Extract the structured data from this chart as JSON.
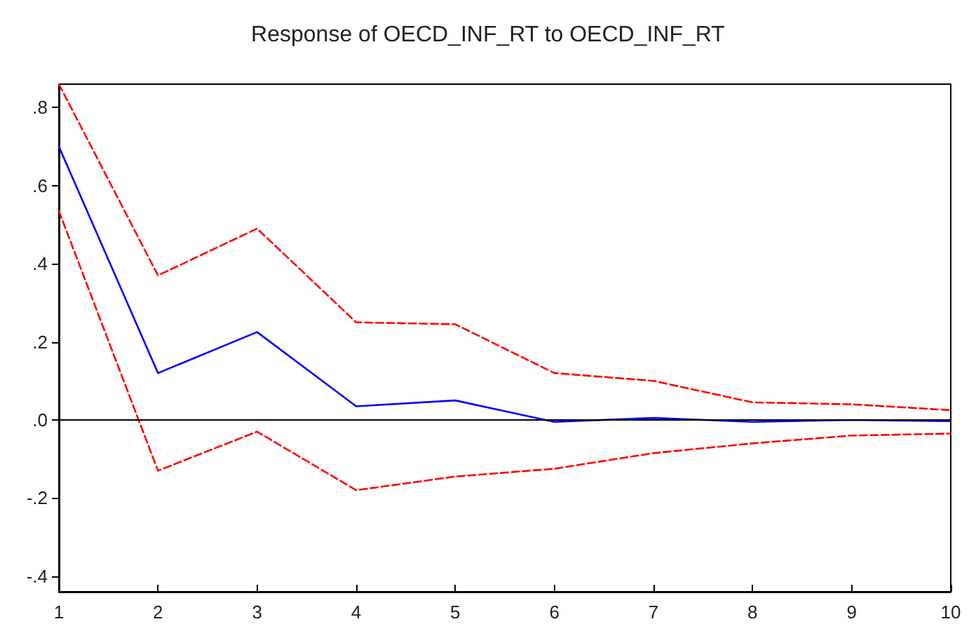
{
  "chart_data": {
    "type": "line",
    "title": "Response of OECD_INF_RT to OECD_INF_RT",
    "categories": [
      "1",
      "2",
      "3",
      "4",
      "5",
      "6",
      "7",
      "8",
      "9",
      "10"
    ],
    "series": [
      {
        "color": "#0000ff",
        "line_style": "solid",
        "values": [
          0.7,
          0.12,
          0.225,
          0.035,
          0.05,
          -0.005,
          0.005,
          -0.005,
          0.0,
          -0.003
        ]
      },
      {
        "color": "#ff0000",
        "line_style": "dashed",
        "values": [
          0.86,
          0.37,
          0.49,
          0.25,
          0.245,
          0.12,
          0.1,
          0.045,
          0.04,
          0.025
        ]
      },
      {
        "color": "#ff0000",
        "line_style": "dashed",
        "values": [
          0.535,
          -0.13,
          -0.03,
          -0.18,
          -0.145,
          -0.125,
          -0.085,
          -0.06,
          -0.04,
          -0.035
        ]
      }
    ],
    "ylim": [
      -0.44,
      0.86
    ],
    "yticks": [
      {
        "value": -0.4,
        "label": "-.4"
      },
      {
        "value": -0.2,
        "label": "-.2"
      },
      {
        "value": 0,
        "label": ".0"
      },
      {
        "value": 0.2,
        "label": ".2"
      },
      {
        "value": 0.4,
        "label": ".4"
      },
      {
        "value": 0.6,
        "label": ".6"
      },
      {
        "value": 0.8,
        "label": ".8"
      }
    ],
    "ref_lines": [
      {
        "axis": "y",
        "value": 0,
        "color": "#000000"
      }
    ],
    "marker": "none",
    "grid": false
  }
}
